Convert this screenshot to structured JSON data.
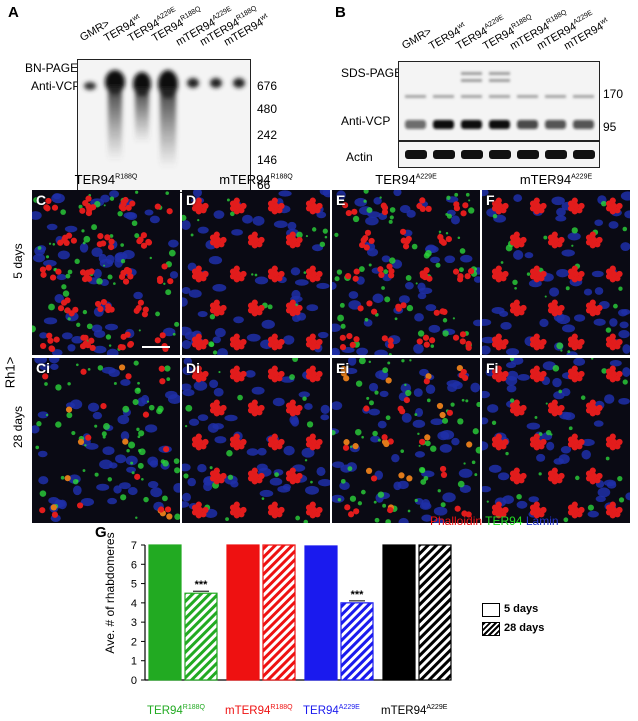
{
  "panelA": {
    "letter": "A",
    "lanes": [
      {
        "name": "GMR>",
        "sup": ""
      },
      {
        "name": "TER94",
        "sup": "wt"
      },
      {
        "name": "TER94",
        "sup": "A229E"
      },
      {
        "name": "TER94",
        "sup": "R188Q"
      },
      {
        "name": "mTER94",
        "sup": "A229E"
      },
      {
        "name": "mTER94",
        "sup": "R188Q"
      },
      {
        "name": "mTER94",
        "sup": "wt"
      }
    ],
    "row_label_1": "BN-PAGE",
    "row_label_2": "Anti-VCP",
    "markers": [
      "676",
      "480",
      "242",
      "146",
      "66"
    ]
  },
  "panelB": {
    "letter": "B",
    "lanes": [
      {
        "name": "GMR>",
        "sup": ""
      },
      {
        "name": "TER94",
        "sup": "wt"
      },
      {
        "name": "TER94",
        "sup": "A229E"
      },
      {
        "name": "TER94",
        "sup": "R188Q"
      },
      {
        "name": "mTER94",
        "sup": "R188Q"
      },
      {
        "name": "mTER94",
        "sup": "A229E"
      },
      {
        "name": "mTER94",
        "sup": "wt"
      }
    ],
    "sds_label": "SDS-PAGE",
    "vcp_label": "Anti-VCP",
    "actin_label": "Actin",
    "markers": [
      "170",
      "95"
    ]
  },
  "micro": {
    "columns": [
      {
        "name": "TER94",
        "sup": "R188Q"
      },
      {
        "name": "mTER94",
        "sup": "R188Q"
      },
      {
        "name": "TER94",
        "sup": "A229E"
      },
      {
        "name": "mTER94",
        "sup": "A229E"
      }
    ],
    "row1_letters": [
      "C",
      "D",
      "E",
      "F"
    ],
    "row2_letters": [
      "Ci",
      "Di",
      "Ei",
      "Fi"
    ],
    "row1_label": "5 days",
    "row2_label": "28 days",
    "side_label": "Rh1>",
    "stain_phalloidin": "Phalloidin",
    "stain_ter94": "TER94",
    "stain_lamin": "Lamin"
  },
  "panelG": {
    "letter": "G",
    "ylabel": "Ave. # of rhabdomeres",
    "legend_5": "5 days",
    "legend_28": "28 days",
    "sig": "***",
    "groups": [
      {
        "name": "TER94",
        "sup": "R188Q",
        "color": "#22aa22"
      },
      {
        "name": "mTER94",
        "sup": "R188Q",
        "color": "#ee1111"
      },
      {
        "name": "TER94",
        "sup": "A229E",
        "color": "#1a1aee"
      },
      {
        "name": "mTER94",
        "sup": "A229E",
        "color": "#000000"
      }
    ]
  },
  "chart_data": {
    "type": "bar",
    "categories": [
      "TER94 R188Q",
      "mTER94 R188Q",
      "TER94 A229E",
      "mTER94 A229E"
    ],
    "series": [
      {
        "name": "5 days",
        "values": [
          7.0,
          7.0,
          6.95,
          7.0
        ]
      },
      {
        "name": "28 days",
        "values": [
          4.5,
          7.0,
          4.0,
          7.0
        ]
      }
    ],
    "ylabel": "Ave. # of rhabdomeres",
    "ylim": [
      0,
      7
    ],
    "yticks": [
      "0",
      "1",
      "2",
      "3",
      "4",
      "5",
      "6",
      "7"
    ],
    "annotations": [
      "***",
      "***"
    ]
  }
}
